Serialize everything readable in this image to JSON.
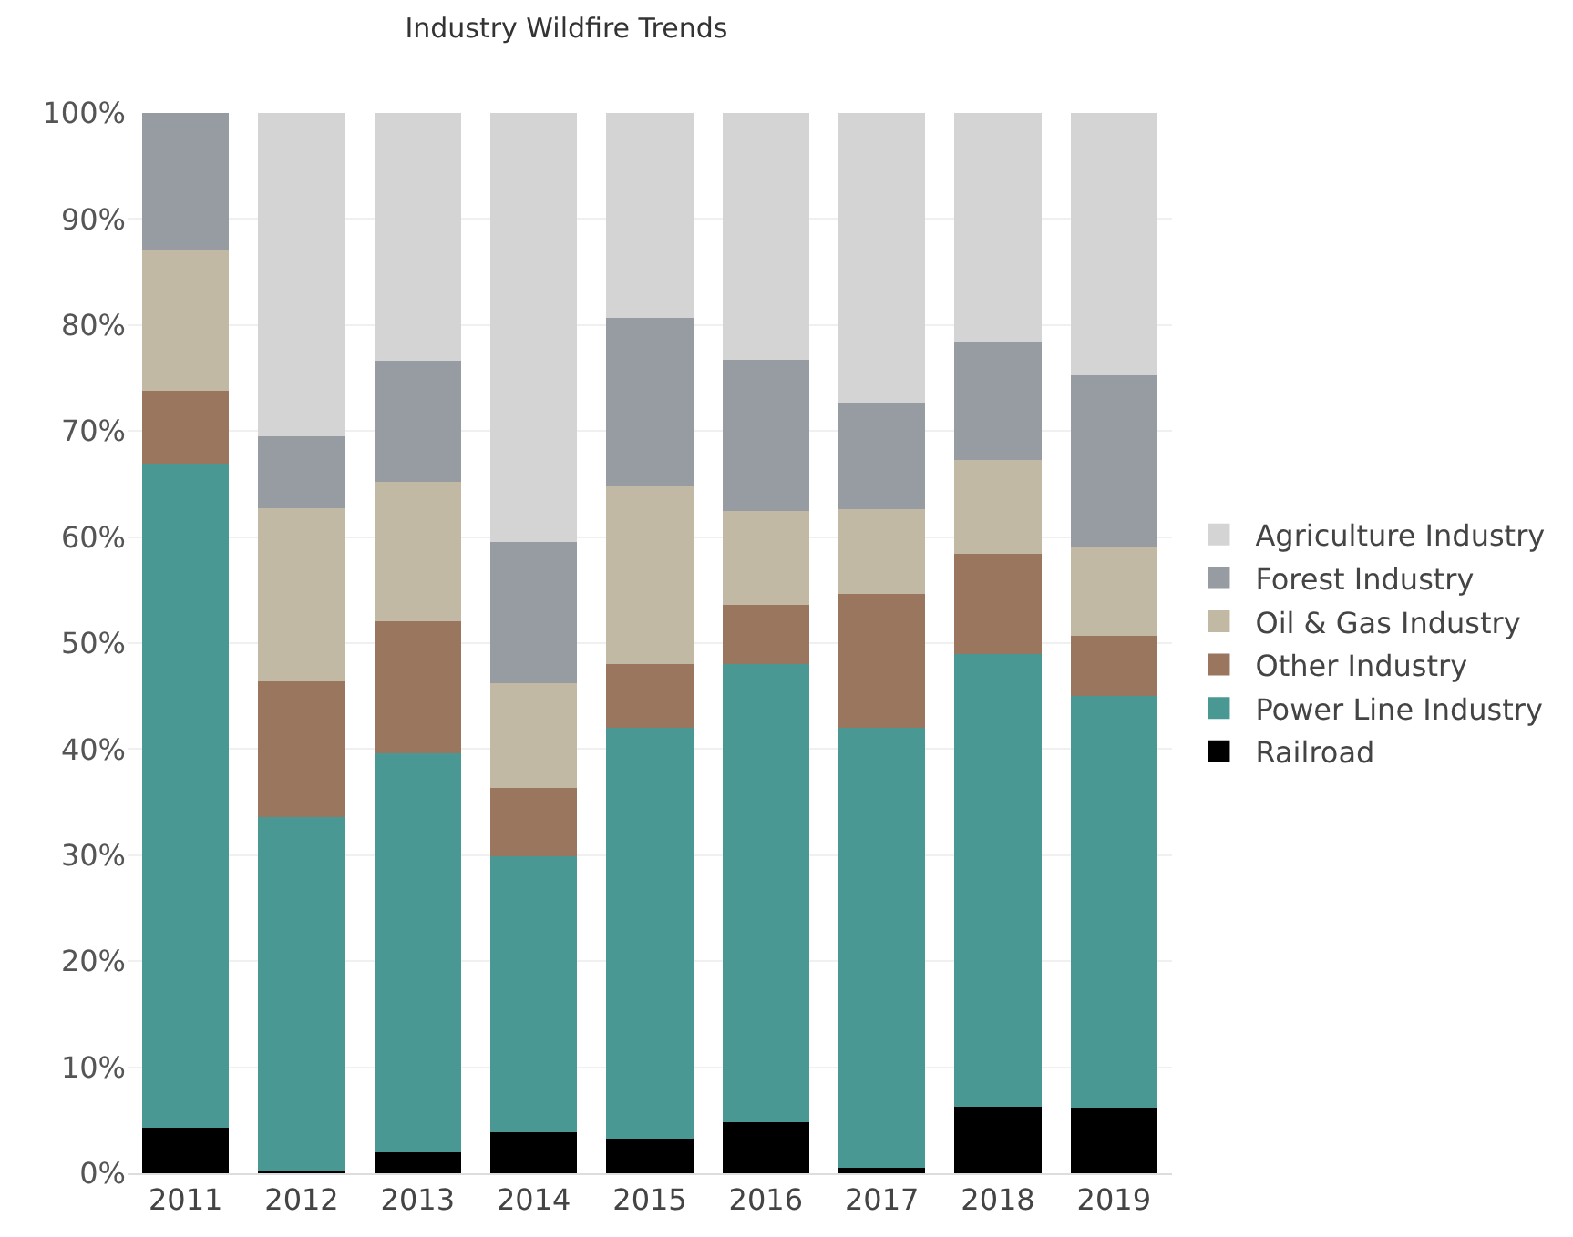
{
  "chart_data": {
    "type": "bar",
    "title": "Industry Wildfire Trends",
    "categories": [
      "2011",
      "2012",
      "2013",
      "2014",
      "2015",
      "2016",
      "2017",
      "2018",
      "2019"
    ],
    "stacked": true,
    "series": [
      {
        "name": "Railroad",
        "color": "#000000",
        "values": [
          4.3,
          0.3,
          2.0,
          3.9,
          3.3,
          4.8,
          0.5,
          6.3,
          6.2
        ]
      },
      {
        "name": "Power Line Industry",
        "color": "#499893",
        "values": [
          62.6,
          33.3,
          37.6,
          26.0,
          38.7,
          43.2,
          41.5,
          42.7,
          38.8
        ]
      },
      {
        "name": "Other Industry",
        "color": "#9b765e",
        "values": [
          6.9,
          12.8,
          12.5,
          6.4,
          6.0,
          5.6,
          12.6,
          9.4,
          5.7
        ]
      },
      {
        "name": "Oil & Gas Industry",
        "color": "#c2b9a5",
        "values": [
          13.2,
          16.3,
          13.1,
          9.9,
          16.9,
          8.9,
          8.0,
          8.9,
          8.4
        ]
      },
      {
        "name": "Forest Industry",
        "color": "#979ca3",
        "values": [
          13.0,
          6.8,
          11.4,
          13.3,
          15.8,
          14.2,
          10.1,
          11.1,
          16.2
        ]
      },
      {
        "name": "Agriculture Industry",
        "color": "#d4d4d4",
        "values": [
          0,
          30.5,
          23.4,
          40.5,
          19.3,
          23.3,
          27.3,
          21.6,
          24.7
        ]
      }
    ],
    "ylim": [
      0,
      100
    ],
    "yticks": [
      {
        "value": 0,
        "label": "0%"
      },
      {
        "value": 10,
        "label": "10%"
      },
      {
        "value": 20,
        "label": "20%"
      },
      {
        "value": 30,
        "label": "30%"
      },
      {
        "value": 40,
        "label": "40%"
      },
      {
        "value": 50,
        "label": "50%"
      },
      {
        "value": 60,
        "label": "60%"
      },
      {
        "value": 70,
        "label": "70%"
      },
      {
        "value": 80,
        "label": "80%"
      },
      {
        "value": 90,
        "label": "90%"
      },
      {
        "value": 100,
        "label": "100%"
      }
    ],
    "grid": "y",
    "legend": "right"
  }
}
